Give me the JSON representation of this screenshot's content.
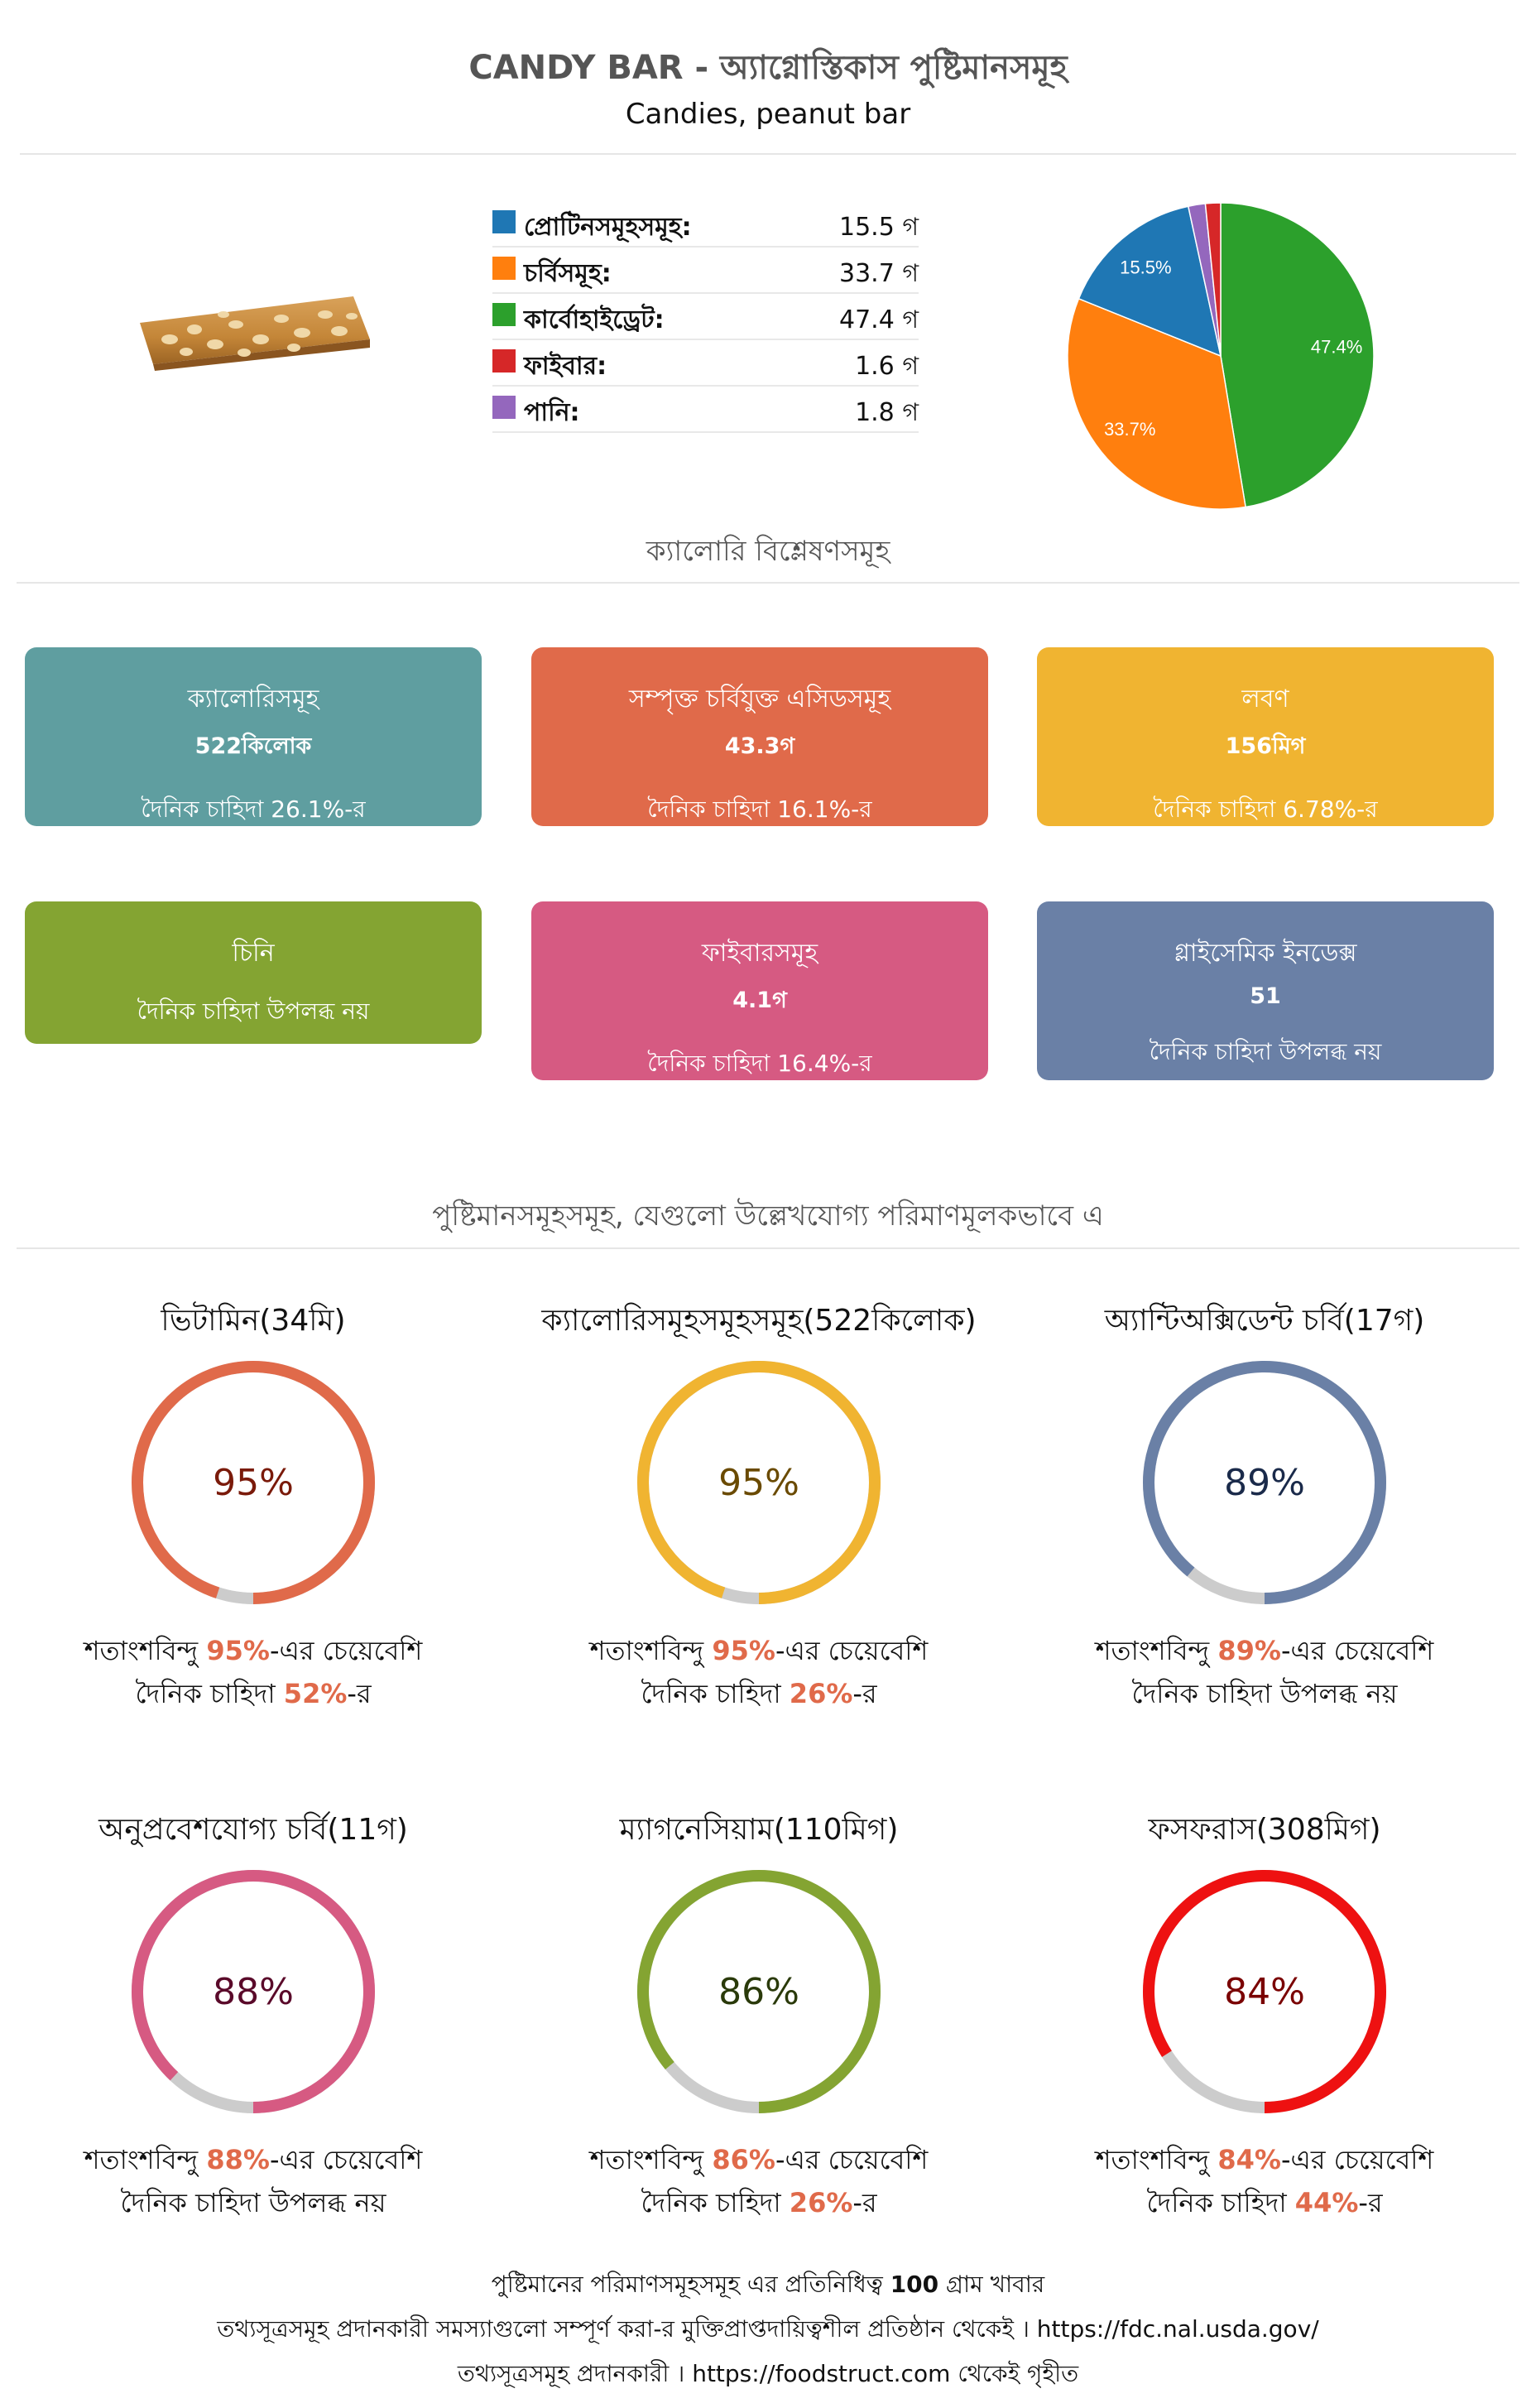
{
  "title": "CANDY BAR - অ্যাগ্নোস্তিকাস পুষ্টিমানসমূহ",
  "subtitle": "Candies, peanut bar",
  "product_icon": "peanut-bar-image",
  "chart_data": {
    "type": "pie",
    "title": "",
    "categories": [
      "প্রোটিনসমূহসমূহ:",
      "চর্বিসমূহ:",
      "কার্বোহাইড্রেট:",
      "ফাইবার:",
      "পানি:"
    ],
    "values": [
      15.5,
      33.7,
      47.4,
      1.6,
      1.8
    ],
    "units": [
      "গ",
      "গ",
      "গ",
      "গ",
      "গ"
    ],
    "colors": [
      "#1f77b4",
      "#ff7f0e",
      "#2ca02c",
      "#d62728",
      "#9467bd"
    ],
    "labels": [
      "15.5%",
      "33.7%",
      "47.4%",
      "",
      ""
    ],
    "legend_placement": "left"
  },
  "section1_title": "ক্যালোরি বিশ্লেষণসমূহ",
  "cards": [
    {
      "title": "ক্যালোরিসমূহ",
      "value": "522কিলোক",
      "note": "দৈনিক চাহিদা 26.1%-র",
      "color": "#5f9ea0"
    },
    {
      "title": "সম্পৃক্ত চর্বিযুক্ত এসিডসমূহ",
      "value": "43.3গ",
      "note": "দৈনিক চাহিদা 16.1%-র",
      "color": "#e06a4a"
    },
    {
      "title": "লবণ",
      "value": "156মিগ",
      "note": "দৈনিক চাহিদা 6.78%-র",
      "color": "#f0b431"
    },
    {
      "title": "চিনি",
      "value": "",
      "note": "দৈনিক চাহিদা উপলব্ধ নয়",
      "color": "#84a432"
    },
    {
      "title": "ফাইবারসমূহ",
      "value": "4.1গ",
      "note": "দৈনিক চাহিদা 16.4%-র",
      "color": "#d65a82"
    },
    {
      "title": "গ্লাইসেমিক ইনডেক্স",
      "value": "51",
      "note": "দৈনিক চাহিদা উপলব্ধ নয়",
      "color": "#6a80a6"
    }
  ],
  "section2_title": "পুষ্টিমানসমূহসমূহ, যেগুলো উল্লেখযোগ্য পরিমাণমূলকভাবে এ",
  "gauges": [
    {
      "title": "ভিটামিন(34মি)",
      "percent": 95,
      "label": "95%",
      "color": "#e06a4a",
      "text_color": "#7a1a0a",
      "cap_a": "শতাংশবিন্দু ",
      "cap_pct": "95%",
      "cap_b": "-এর চেয়েবেশি",
      "cap2_a": "দৈনিক চাহিদা ",
      "cap2_pct": "52%",
      "cap2_b": "-র"
    },
    {
      "title": "ক্যালোরিসমূহসমূহসমূহ(522কিলোক)",
      "percent": 95,
      "label": "95%",
      "color": "#f0b431",
      "text_color": "#6a4a00",
      "cap_a": "শতাংশবিন্দু ",
      "cap_pct": "95%",
      "cap_b": "-এর চেয়েবেশি",
      "cap2_a": "দৈনিক চাহিদা ",
      "cap2_pct": "26%",
      "cap2_b": "-র"
    },
    {
      "title": "অ্যান্টিঅক্সিডেন্ট চর্বি(17গ)",
      "percent": 89,
      "label": "89%",
      "color": "#6a80a6",
      "text_color": "#1a2a4a",
      "cap_a": "শতাংশবিন্দু ",
      "cap_pct": "89%",
      "cap_b": "-এর চেয়েবেশি",
      "cap2_a": "দৈনিক চাহিদা উপলব্ধ নয়",
      "cap2_pct": "",
      "cap2_b": ""
    },
    {
      "title": "অনুপ্রবেশযোগ্য চর্বি(11গ)",
      "percent": 88,
      "label": "88%",
      "color": "#d65a82",
      "text_color": "#5a0a2a",
      "cap_a": "শতাংশবিন্দু ",
      "cap_pct": "88%",
      "cap_b": "-এর চেয়েবেশি",
      "cap2_a": "দৈনিক চাহিদা উপলব্ধ নয়",
      "cap2_pct": "",
      "cap2_b": ""
    },
    {
      "title": "ম্যাগনেসিয়াম(110মিগ)",
      "percent": 86,
      "label": "86%",
      "color": "#84a432",
      "text_color": "#2a3a0a",
      "cap_a": "শতাংশবিন্দু ",
      "cap_pct": "86%",
      "cap_b": "-এর চেয়েবেশি",
      "cap2_a": "দৈনিক চাহিদা ",
      "cap2_pct": "26%",
      "cap2_b": "-র"
    },
    {
      "title": "ফসফরাস(308মিগ)",
      "percent": 84,
      "label": "84%",
      "color": "#ee1111",
      "text_color": "#7a0000",
      "cap_a": "শতাংশবিন্দু ",
      "cap_pct": "84%",
      "cap_b": "-এর চেয়েবেশি",
      "cap2_a": "দৈনিক চাহিদা ",
      "cap2_pct": "44%",
      "cap2_b": "-র"
    }
  ],
  "footer": {
    "line1_a": "পুষ্টিমানের পরিমাণসমূহসমূহ এর প্রতিনিধিত্ব ",
    "line1_bold": "100",
    "line1_b": " গ্রাম খাবার",
    "line2": "তথ্যসূত্রসমূহ প্রদানকারী সমস্যাগুলো সম্পূর্ণ করা-র মুক্তিপ্রাপ্তদায়িত্বশীল প্রতিষ্ঠান থেকেই । https://fdc.nal.usda.gov/",
    "line3": "তথ্যসূত্রসমূহ প্রদানকারী । https://foodstruct.com থেকেই গৃহীত"
  }
}
